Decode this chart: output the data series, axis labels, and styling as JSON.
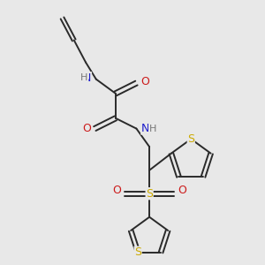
{
  "background_color": "#e8e8e8",
  "bond_color": "#2a2a2a",
  "atom_colors": {
    "N": "#1a1acc",
    "O": "#cc1a1a",
    "S": "#ccaa00",
    "H": "#777777",
    "C": "#2a2a2a"
  },
  "figsize": [
    3.0,
    3.0
  ],
  "dpi": 100,
  "lw": 1.4,
  "xlim": [
    0,
    10
  ],
  "ylim": [
    0,
    10
  ]
}
